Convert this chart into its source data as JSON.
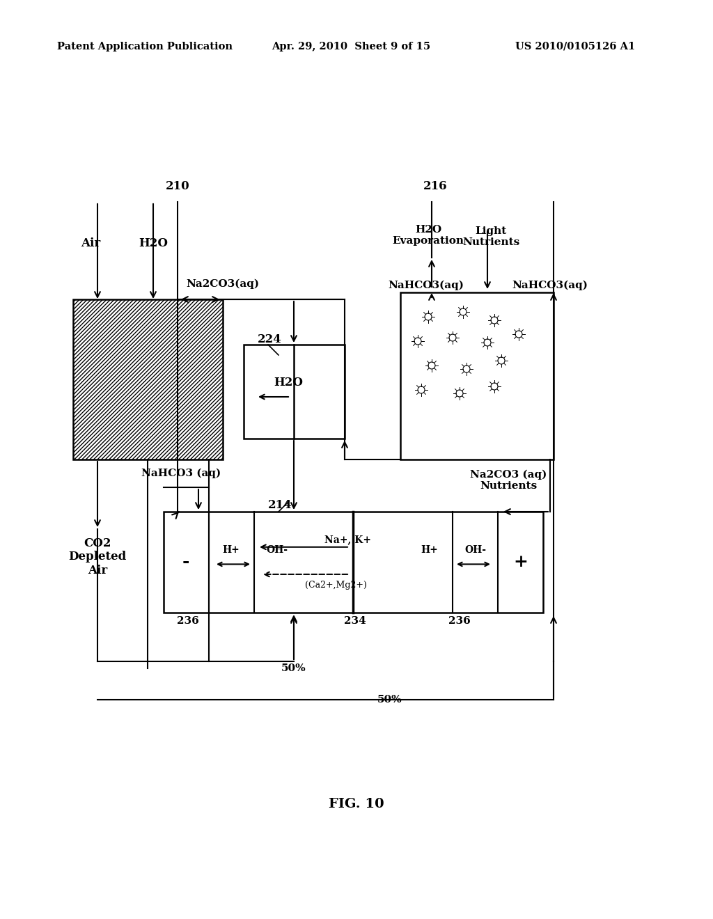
{
  "bg_color": "#ffffff",
  "header_left": "Patent Application Publication",
  "header_mid": "Apr. 29, 2010  Sheet 9 of 15",
  "header_right": "US 2010/0105126 A1",
  "fig_label": "FIG. 10",
  "label_210": "210",
  "label_216": "216",
  "label_224": "224",
  "label_214": "214",
  "label_234": "234",
  "label_236a": "236",
  "label_236b": "236",
  "label_50a": "50%",
  "label_50b": "50%",
  "text_air": "Air",
  "text_h2o_top": "H2O",
  "text_h2o_evap": "H2O\nEvaporation",
  "text_light_nutrients": "Light\nNutrients",
  "text_na2co3_aq_top": "Na2CO3(aq)",
  "text_nahco3_aq_left": "NaHCO3(aq)",
  "text_nahco3_aq_right": "NaHCO3(aq)",
  "text_nahco3_ag": "NaHCO3 (aq)",
  "text_na2co3_ag": "Na2CO3 (aq)\nNutrients",
  "text_h2o_box": "H2O",
  "text_co2": "CO2\nDepleted\nAir",
  "text_hplus_left": "H+",
  "text_ohm_left": "OH-",
  "text_na_k": "Na+, K+",
  "text_hplus_right": "H+",
  "text_ohm_right": "OH-",
  "text_ca_mg": "(Ca2+,Mg2+)",
  "text_minus": "-",
  "text_plus": "+"
}
